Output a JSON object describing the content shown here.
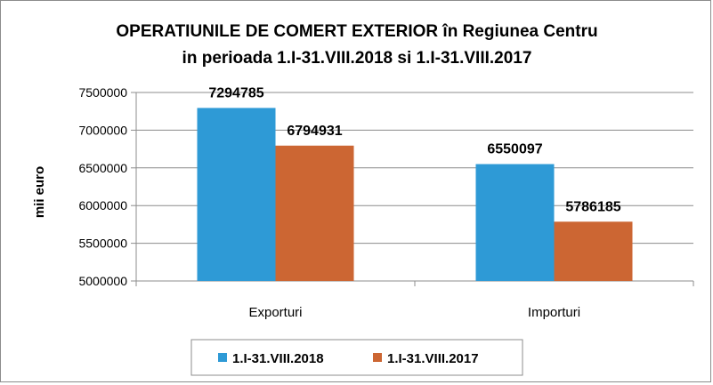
{
  "chart_data": {
    "type": "bar",
    "title_line1": "OPERATIUNILE DE COMERT EXTERIOR în Regiunea Centru",
    "title_line2": "in perioada 1.I-31.VIII.2018 si 1.I-31.VIII.2017",
    "ylabel": "mii euro",
    "categories": [
      "Exporturi",
      "Importuri"
    ],
    "series": [
      {
        "name": "1.I-31.VIII.2018",
        "color": "#2e9ad6",
        "values": [
          7294785,
          6550097
        ]
      },
      {
        "name": "1.I-31.VIII.2017",
        "color": "#cc6633",
        "values": [
          6794931,
          5786185
        ]
      }
    ],
    "ylim": [
      5000000,
      7500000
    ],
    "yticks": [
      5000000,
      5500000,
      6000000,
      6500000,
      7000000,
      7500000
    ],
    "grid": true,
    "legend_position": "bottom"
  }
}
